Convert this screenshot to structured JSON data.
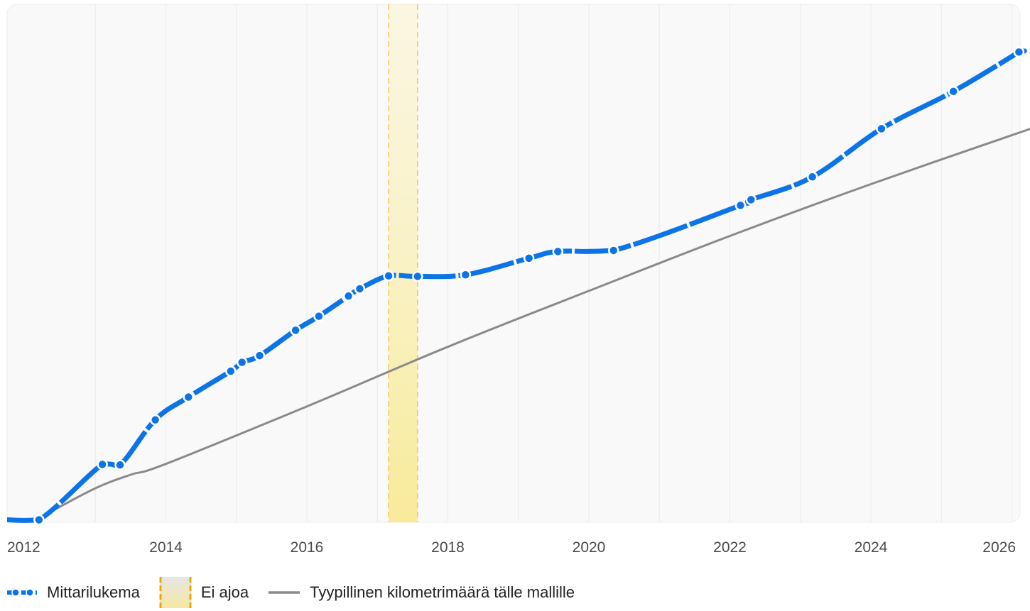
{
  "chart_data": {
    "type": "line",
    "title": "",
    "xlabel": "",
    "ylabel": "",
    "x_axis": {
      "ticks": [
        "2012",
        "2014",
        "2016",
        "2018",
        "2020",
        "2022",
        "2024",
        "2026"
      ],
      "tick_values": [
        2012,
        2014,
        2016,
        2018,
        2020,
        2022,
        2024,
        2026
      ],
      "range": [
        2012,
        2026.35
      ],
      "highlight_tick": "2026"
    },
    "y_axis": {
      "range": [
        0,
        100
      ],
      "labels_shown": false
    },
    "grid": {
      "vertical": true,
      "horizontal": false
    },
    "legend_position": "bottom-left",
    "series": [
      {
        "name": "Mittarilukema",
        "style": "dashed-with-dots",
        "color": "#0d74e7",
        "x": [
          2012.2,
          2013.1,
          2013.35,
          2013.85,
          2014.32,
          2014.92,
          2015.08,
          2015.33,
          2015.84,
          2016.17,
          2016.59,
          2016.75,
          2017.16,
          2017.57,
          2018.25,
          2019.15,
          2019.56,
          2020.35,
          2022.15,
          2022.3,
          2023.17,
          2024.15,
          2025.17,
          2026.1
        ],
        "values": [
          0.2,
          10.9,
          10.8,
          19.5,
          23.9,
          28.9,
          30.6,
          31.9,
          36.8,
          39.5,
          43.4,
          44.8,
          47.3,
          47.2,
          47.5,
          50.7,
          52.0,
          52.2,
          60.9,
          62.0,
          66.4,
          75.7,
          82.9,
          90.5
        ]
      },
      {
        "name": "Tyypillinen kilometrimäärä tälle mallille",
        "style": "solid",
        "color": "#8a8a8a",
        "x": [
          2012.4,
          2013.0,
          2013.5,
          2014.0,
          2016.0,
          2018.0,
          2020.0,
          2022.0,
          2024.0,
          2026.35
        ],
        "values": [
          2.0,
          6.3,
          8.9,
          11.0,
          22.1,
          33.6,
          44.4,
          55.0,
          65.0,
          76.1
        ]
      }
    ],
    "shaded_region": {
      "name": "Ei ajoa",
      "x_start": 2017.16,
      "x_end": 2017.57,
      "color": "#f7e67a"
    }
  }
}
